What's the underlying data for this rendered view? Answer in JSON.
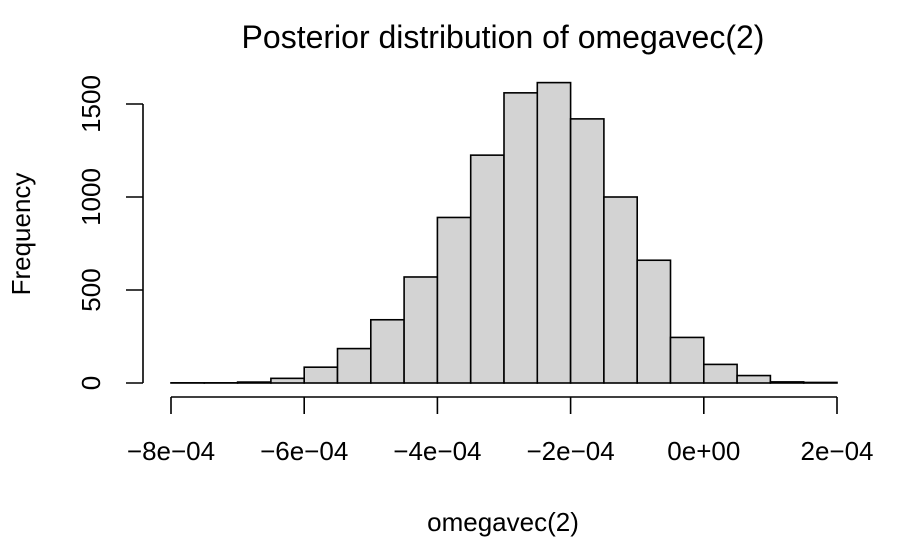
{
  "chart_data": {
    "type": "bar",
    "title": "Posterior distribution of omegavec(2)",
    "xlabel": "omegavec(2)",
    "ylabel": "Frequency",
    "xlim": [
      -0.0008,
      0.0002
    ],
    "ylim": [
      0,
      1500
    ],
    "x_ticks": [
      -0.0008,
      -0.0006,
      -0.0004,
      -0.0002,
      0.0,
      0.0002
    ],
    "x_tick_labels": [
      "−8e−04",
      "−6e−04",
      "−4e−04",
      "−2e−04",
      "0e+00",
      "2e−04"
    ],
    "y_ticks": [
      0,
      500,
      1000,
      1500
    ],
    "y_tick_labels": [
      "0",
      "500",
      "1000",
      "1500"
    ],
    "bin_width": 5e-05,
    "bins": [
      {
        "x0": -0.0008,
        "x1": -0.00075,
        "count": 1
      },
      {
        "x0": -0.00075,
        "x1": -0.0007,
        "count": 1
      },
      {
        "x0": -0.0007,
        "x1": -0.00065,
        "count": 5
      },
      {
        "x0": -0.00065,
        "x1": -0.0006,
        "count": 25
      },
      {
        "x0": -0.0006,
        "x1": -0.00055,
        "count": 85
      },
      {
        "x0": -0.00055,
        "x1": -0.0005,
        "count": 185
      },
      {
        "x0": -0.0005,
        "x1": -0.00045,
        "count": 340
      },
      {
        "x0": -0.00045,
        "x1": -0.0004,
        "count": 570
      },
      {
        "x0": -0.0004,
        "x1": -0.00035,
        "count": 890
      },
      {
        "x0": -0.00035,
        "x1": -0.0003,
        "count": 1225
      },
      {
        "x0": -0.0003,
        "x1": -0.00025,
        "count": 1560
      },
      {
        "x0": -0.00025,
        "x1": -0.0002,
        "count": 1615
      },
      {
        "x0": -0.0002,
        "x1": -0.00015,
        "count": 1420
      },
      {
        "x0": -0.00015,
        "x1": -0.0001,
        "count": 1000
      },
      {
        "x0": -0.0001,
        "x1": -5e-05,
        "count": 660
      },
      {
        "x0": -5e-05,
        "x1": 0.0,
        "count": 245
      },
      {
        "x0": 0.0,
        "x1": 5e-05,
        "count": 100
      },
      {
        "x0": 5e-05,
        "x1": 0.0001,
        "count": 40
      },
      {
        "x0": 0.0001,
        "x1": 0.00015,
        "count": 6
      },
      {
        "x0": 0.00015,
        "x1": 0.0002,
        "count": 3
      }
    ],
    "grid": false,
    "legend": "none",
    "colors": {
      "bar_fill": "#d3d3d3",
      "bar_stroke": "#000000"
    }
  }
}
